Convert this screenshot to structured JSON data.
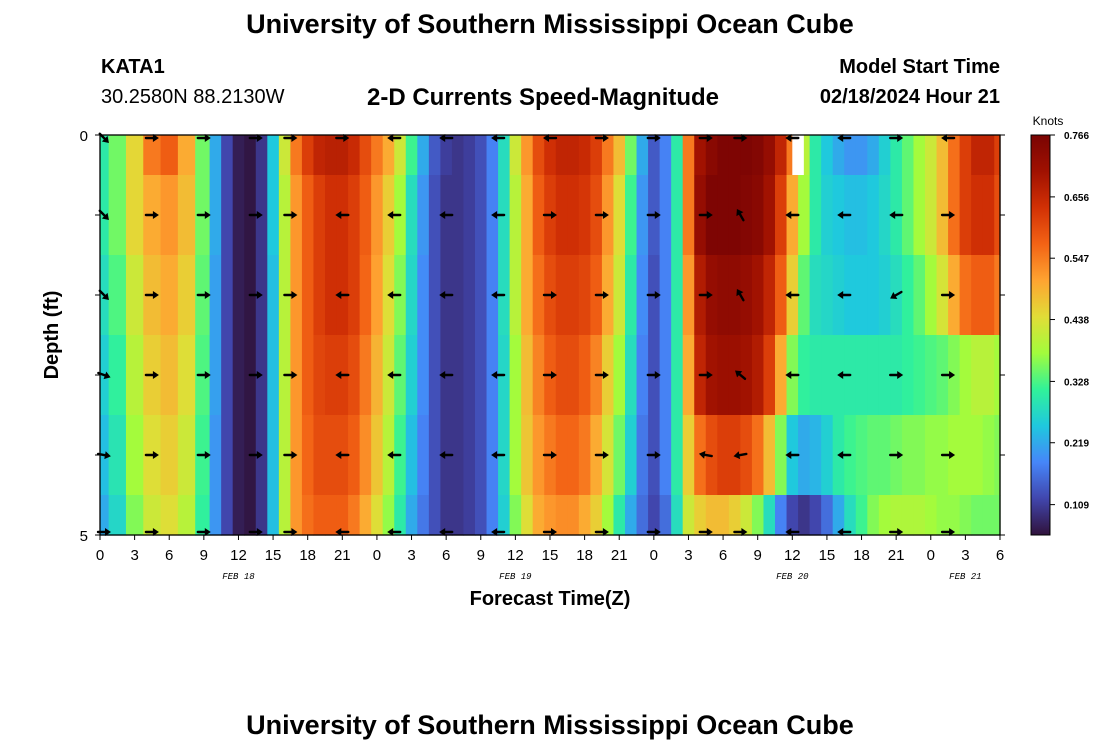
{
  "header": {
    "title": "University of Southern Mississippi Ocean Cube",
    "station_id": "KATA1",
    "station_coords": "30.2580N  88.2130W",
    "model_start_label": "Model Start Time",
    "model_start_value": "02/18/2024 Hour 21",
    "footer_title": "University of Southern Mississippi Ocean Cube"
  },
  "colors": {
    "scale": [
      "#30123b",
      "#4146ad",
      "#4686f9",
      "#1fc8de",
      "#31f299",
      "#a2fc3c",
      "#e1dd37",
      "#fea431",
      "#f36315",
      "#d23105",
      "#a01101",
      "#7a0403"
    ]
  },
  "chart_data": {
    "type": "heatmap",
    "title": "2-D Currents Speed-Magnitude",
    "xlabel": "Forecast Time(Z)",
    "ylabel": "Depth (ft)",
    "x_ticks": [
      "0",
      "3",
      "6",
      "9",
      "12",
      "15",
      "18",
      "21",
      "0",
      "3",
      "6",
      "9",
      "12",
      "15",
      "18",
      "21",
      "0",
      "3",
      "6",
      "9",
      "12",
      "15",
      "18",
      "21",
      "0",
      "3",
      "6"
    ],
    "x_hours": [
      0,
      3,
      6,
      9,
      12,
      15,
      18,
      21,
      24,
      27,
      30,
      33,
      36,
      39,
      42,
      45,
      48,
      51,
      54,
      57,
      60,
      63,
      66,
      69,
      72,
      75,
      78
    ],
    "date_labels": [
      {
        "label": "FEB 18",
        "hour": 12
      },
      {
        "label": "FEB 19",
        "hour": 36
      },
      {
        "label": "FEB 20",
        "hour": 60
      },
      {
        "label": "FEB 21",
        "hour": 75
      }
    ],
    "x_range": [
      0,
      78
    ],
    "y_ticks": [
      "0",
      "5"
    ],
    "y_range": [
      0,
      5
    ],
    "depth_levels": [
      0,
      1,
      2,
      3,
      4,
      5
    ],
    "colorbar": {
      "label": "Knots",
      "range": [
        0.055,
        0.766
      ],
      "ticks": [
        "0.766",
        "0.656",
        "0.547",
        "0.438",
        "0.328",
        "0.219",
        "0.109"
      ],
      "tick_values": [
        0.766,
        0.656,
        0.547,
        0.438,
        0.328,
        0.219,
        0.109
      ]
    },
    "knot_hours": [
      0,
      1.5,
      3,
      4.5,
      6,
      7.5,
      9,
      10,
      11,
      12,
      13,
      14,
      15,
      16,
      17,
      18,
      19,
      20,
      21,
      22,
      23,
      24,
      25,
      26,
      27,
      28,
      29,
      30,
      31,
      32,
      33,
      34,
      35,
      36,
      37,
      38,
      39,
      40,
      41,
      42,
      43,
      44,
      45,
      46,
      47,
      48,
      49,
      50,
      51,
      52,
      53,
      54,
      55,
      56,
      57,
      58,
      59,
      60,
      61,
      62,
      63,
      64,
      65,
      66,
      67,
      68,
      69,
      70,
      71,
      72,
      73,
      74,
      75,
      76,
      77,
      78
    ],
    "speed_knots": [
      [
        0.3,
        0.35,
        0.45,
        0.55,
        0.58,
        0.5,
        0.35,
        0.22,
        0.12,
        0.07,
        0.06,
        0.1,
        0.25,
        0.42,
        0.55,
        0.62,
        0.66,
        0.67,
        0.67,
        0.65,
        0.6,
        0.55,
        0.5,
        0.42,
        0.32,
        0.22,
        0.14,
        0.11,
        0.1,
        0.11,
        0.13,
        0.18,
        0.28,
        0.42,
        0.52,
        0.6,
        0.64,
        0.66,
        0.66,
        0.65,
        0.62,
        0.55,
        0.48,
        0.35,
        0.22,
        0.14,
        0.18,
        0.3,
        0.55,
        0.7,
        0.74,
        0.76,
        0.76,
        0.76,
        0.75,
        0.72,
        0.66,
        0.55,
        0.4,
        0.3,
        0.25,
        0.22,
        0.2,
        0.2,
        0.22,
        0.26,
        0.3,
        0.34,
        0.38,
        0.42,
        0.48,
        0.56,
        0.62,
        0.66,
        0.66,
        0.62
      ],
      [
        0.3,
        0.35,
        0.45,
        0.5,
        0.52,
        0.48,
        0.35,
        0.22,
        0.12,
        0.07,
        0.06,
        0.1,
        0.25,
        0.4,
        0.52,
        0.58,
        0.62,
        0.64,
        0.64,
        0.62,
        0.58,
        0.52,
        0.46,
        0.38,
        0.28,
        0.2,
        0.13,
        0.1,
        0.1,
        0.11,
        0.13,
        0.18,
        0.28,
        0.4,
        0.5,
        0.58,
        0.62,
        0.64,
        0.64,
        0.63,
        0.6,
        0.52,
        0.44,
        0.32,
        0.2,
        0.14,
        0.18,
        0.3,
        0.55,
        0.72,
        0.76,
        0.76,
        0.76,
        0.75,
        0.74,
        0.7,
        0.62,
        0.5,
        0.38,
        0.3,
        0.26,
        0.25,
        0.24,
        0.24,
        0.25,
        0.27,
        0.3,
        0.34,
        0.38,
        0.42,
        0.48,
        0.56,
        0.62,
        0.64,
        0.64,
        0.6
      ],
      [
        0.28,
        0.33,
        0.42,
        0.48,
        0.5,
        0.46,
        0.34,
        0.21,
        0.12,
        0.07,
        0.06,
        0.1,
        0.24,
        0.4,
        0.52,
        0.58,
        0.62,
        0.64,
        0.64,
        0.62,
        0.57,
        0.51,
        0.44,
        0.36,
        0.27,
        0.19,
        0.13,
        0.1,
        0.1,
        0.11,
        0.13,
        0.18,
        0.28,
        0.4,
        0.5,
        0.56,
        0.6,
        0.62,
        0.62,
        0.61,
        0.58,
        0.5,
        0.42,
        0.3,
        0.19,
        0.13,
        0.18,
        0.3,
        0.52,
        0.68,
        0.72,
        0.73,
        0.73,
        0.72,
        0.7,
        0.66,
        0.58,
        0.46,
        0.34,
        0.28,
        0.27,
        0.26,
        0.25,
        0.25,
        0.25,
        0.26,
        0.28,
        0.31,
        0.34,
        0.38,
        0.43,
        0.5,
        0.56,
        0.58,
        0.58,
        0.55
      ],
      [
        0.26,
        0.31,
        0.4,
        0.46,
        0.48,
        0.44,
        0.33,
        0.21,
        0.12,
        0.07,
        0.06,
        0.1,
        0.24,
        0.4,
        0.52,
        0.58,
        0.61,
        0.62,
        0.62,
        0.6,
        0.55,
        0.49,
        0.42,
        0.34,
        0.26,
        0.19,
        0.13,
        0.1,
        0.1,
        0.11,
        0.13,
        0.18,
        0.27,
        0.38,
        0.48,
        0.54,
        0.58,
        0.6,
        0.6,
        0.58,
        0.54,
        0.46,
        0.38,
        0.28,
        0.18,
        0.13,
        0.18,
        0.3,
        0.5,
        0.66,
        0.7,
        0.71,
        0.71,
        0.7,
        0.68,
        0.62,
        0.5,
        0.36,
        0.31,
        0.3,
        0.3,
        0.3,
        0.3,
        0.3,
        0.3,
        0.3,
        0.3,
        0.31,
        0.32,
        0.33,
        0.34,
        0.36,
        0.38,
        0.4,
        0.4,
        0.38
      ],
      [
        0.24,
        0.29,
        0.38,
        0.44,
        0.46,
        0.42,
        0.32,
        0.2,
        0.12,
        0.07,
        0.06,
        0.1,
        0.24,
        0.4,
        0.52,
        0.57,
        0.6,
        0.6,
        0.6,
        0.58,
        0.53,
        0.47,
        0.4,
        0.32,
        0.24,
        0.18,
        0.13,
        0.1,
        0.1,
        0.11,
        0.13,
        0.18,
        0.27,
        0.38,
        0.47,
        0.52,
        0.55,
        0.57,
        0.57,
        0.55,
        0.5,
        0.43,
        0.35,
        0.26,
        0.17,
        0.13,
        0.18,
        0.3,
        0.46,
        0.56,
        0.6,
        0.62,
        0.62,
        0.6,
        0.56,
        0.48,
        0.36,
        0.25,
        0.22,
        0.23,
        0.26,
        0.3,
        0.32,
        0.33,
        0.34,
        0.34,
        0.35,
        0.36,
        0.36,
        0.37,
        0.37,
        0.38,
        0.38,
        0.38,
        0.37,
        0.36
      ],
      [
        0.22,
        0.27,
        0.36,
        0.42,
        0.44,
        0.4,
        0.31,
        0.2,
        0.12,
        0.07,
        0.06,
        0.1,
        0.24,
        0.4,
        0.52,
        0.56,
        0.58,
        0.58,
        0.58,
        0.55,
        0.5,
        0.44,
        0.37,
        0.3,
        0.22,
        0.17,
        0.13,
        0.1,
        0.1,
        0.11,
        0.13,
        0.18,
        0.26,
        0.36,
        0.44,
        0.5,
        0.52,
        0.53,
        0.53,
        0.5,
        0.46,
        0.38,
        0.3,
        0.22,
        0.16,
        0.12,
        0.16,
        0.28,
        0.42,
        0.46,
        0.48,
        0.48,
        0.46,
        0.42,
        0.36,
        0.28,
        0.18,
        0.12,
        0.1,
        0.12,
        0.16,
        0.22,
        0.28,
        0.32,
        0.36,
        0.38,
        0.39,
        0.39,
        0.39,
        0.38,
        0.37,
        0.37,
        0.36,
        0.35,
        0.35,
        0.35
      ]
    ],
    "missing_data": [
      {
        "hour_start": 60,
        "hour_end": 61,
        "depth_start": 0,
        "depth_end": 0.5
      }
    ],
    "arrow_hours": [
      0,
      4.5,
      9,
      13.5,
      16.5,
      21,
      25.5,
      30,
      34.5,
      39,
      43.5,
      48,
      52.5,
      55.5,
      60,
      64.5,
      69,
      73.5
    ],
    "arrow_directions_deg": [
      [
        135,
        90,
        90,
        90,
        90,
        90,
        270,
        270,
        270,
        270,
        90,
        90,
        90,
        90,
        270,
        270,
        90,
        270
      ],
      [
        135,
        90,
        90,
        90,
        90,
        270,
        270,
        270,
        270,
        90,
        90,
        90,
        90,
        330,
        270,
        270,
        270,
        90
      ],
      [
        135,
        90,
        90,
        90,
        90,
        270,
        270,
        270,
        270,
        90,
        90,
        90,
        90,
        330,
        270,
        270,
        240,
        90
      ],
      [
        110,
        90,
        90,
        90,
        90,
        270,
        270,
        270,
        270,
        90,
        90,
        90,
        90,
        310,
        270,
        270,
        90,
        90
      ],
      [
        100,
        90,
        90,
        90,
        90,
        270,
        270,
        270,
        270,
        90,
        90,
        90,
        280,
        260,
        270,
        270,
        90,
        90
      ],
      [
        90,
        90,
        90,
        90,
        90,
        270,
        270,
        270,
        270,
        90,
        90,
        90,
        90,
        90,
        270,
        270,
        90,
        90
      ]
    ]
  }
}
